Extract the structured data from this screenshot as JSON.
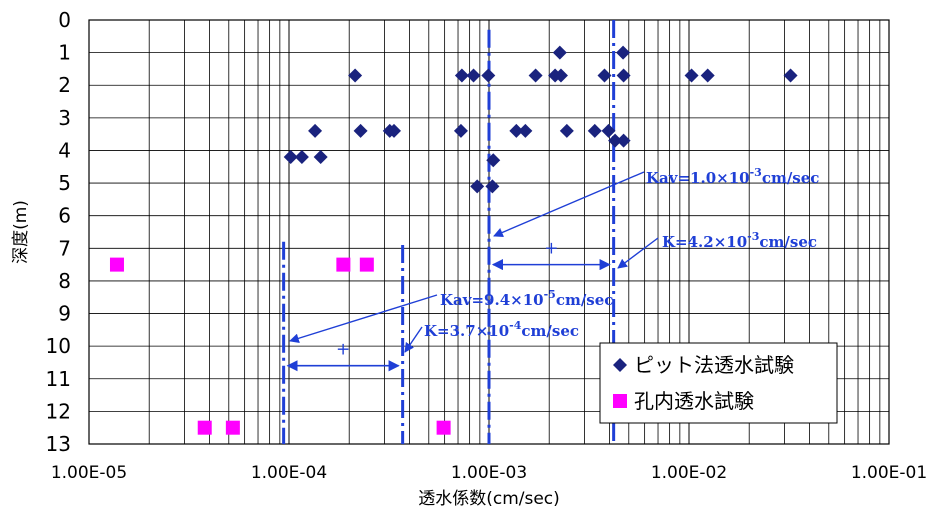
{
  "chart_data": {
    "type": "scatter",
    "xscale": "log",
    "xlim": [
      1e-05,
      0.1
    ],
    "ylim": [
      0,
      13
    ],
    "y_inverted": true,
    "grid": true,
    "xlabel": "透水係数(cm/sec)",
    "ylabel": "深度(m)",
    "x_ticks": [
      "1.00E-05",
      "1.00E-04",
      "1.00E-03",
      "1.00E-02",
      "1.00E-01"
    ],
    "y_ticks": [
      "0",
      "1",
      "2",
      "3",
      "4",
      "5",
      "6",
      "7",
      "8",
      "9",
      "10",
      "11",
      "12",
      "13"
    ],
    "legend_position": "bottom-right",
    "series": [
      {
        "name": "ピット法透水試験",
        "marker": "diamond",
        "color": "#1a237e",
        "points": [
          {
            "x": 0.00226,
            "y": 1.0
          },
          {
            "x": 0.00468,
            "y": 1.0
          },
          {
            "x": 0.000214,
            "y": 1.7
          },
          {
            "x": 0.000732,
            "y": 1.7
          },
          {
            "x": 0.000837,
            "y": 1.7
          },
          {
            "x": 0.000992,
            "y": 1.7
          },
          {
            "x": 0.00171,
            "y": 1.7
          },
          {
            "x": 0.00214,
            "y": 1.7
          },
          {
            "x": 0.00229,
            "y": 1.7
          },
          {
            "x": 0.00378,
            "y": 1.7
          },
          {
            "x": 0.00471,
            "y": 1.7
          },
          {
            "x": 0.0103,
            "y": 1.7
          },
          {
            "x": 0.0124,
            "y": 1.7
          },
          {
            "x": 0.0322,
            "y": 1.7
          },
          {
            "x": 0.000135,
            "y": 3.4
          },
          {
            "x": 0.000228,
            "y": 3.4
          },
          {
            "x": 0.000319,
            "y": 3.4
          },
          {
            "x": 0.000335,
            "y": 3.4
          },
          {
            "x": 0.000724,
            "y": 3.4
          },
          {
            "x": 0.00137,
            "y": 3.4
          },
          {
            "x": 0.00152,
            "y": 3.4
          },
          {
            "x": 0.00245,
            "y": 3.4
          },
          {
            "x": 0.00338,
            "y": 3.4
          },
          {
            "x": 0.00396,
            "y": 3.4
          },
          {
            "x": 0.00427,
            "y": 3.7
          },
          {
            "x": 0.00471,
            "y": 3.7
          },
          {
            "x": 0.000102,
            "y": 4.2
          },
          {
            "x": 0.000116,
            "y": 4.2
          },
          {
            "x": 0.000144,
            "y": 4.2
          },
          {
            "x": 0.00105,
            "y": 4.3
          },
          {
            "x": 0.000873,
            "y": 5.1
          },
          {
            "x": 0.00104,
            "y": 5.1
          }
        ]
      },
      {
        "name": "孔内透水試験",
        "marker": "square",
        "color": "#ff00ff",
        "points": [
          {
            "x": 1.38e-05,
            "y": 7.5
          },
          {
            "x": 0.000187,
            "y": 7.5
          },
          {
            "x": 0.000245,
            "y": 7.5
          },
          {
            "x": 3.79e-05,
            "y": 12.5
          },
          {
            "x": 5.24e-05,
            "y": 12.5
          },
          {
            "x": 0.000593,
            "y": 12.5
          }
        ]
      }
    ],
    "reference_lines": [
      {
        "label": "Kav=9.4×10-5cm/sec",
        "x": 9.4e-05,
        "y_range": [
          6.8,
          13
        ]
      },
      {
        "label": "K=3.7×10-4cm/sec",
        "x": 0.00037,
        "y_range": [
          6.9,
          13
        ]
      },
      {
        "label": "Kav=1.0×10-3cm/sec",
        "x": 0.001,
        "y_range": [
          0.3,
          13
        ]
      },
      {
        "label": "K=4.2×10-3cm/sec",
        "x": 0.0042,
        "y_range": [
          0,
          13
        ]
      }
    ],
    "annotations": [
      {
        "text_parts": [
          "Kav=1.0",
          "×",
          "10",
          "-3",
          "cm/sec"
        ]
      },
      {
        "text_parts": [
          "K=4.2",
          "×",
          "10",
          "-3",
          "cm/sec"
        ]
      },
      {
        "text_parts": [
          "Kav=9.4",
          "×",
          "10",
          "-5",
          "cm/sec"
        ]
      },
      {
        "text_parts": [
          "K=3.7",
          "×",
          "10",
          "-4",
          "cm/sec"
        ]
      }
    ],
    "range_markers": [
      {
        "x_range": [
          9.4e-05,
          0.00037
        ],
        "y": 10.6,
        "symbol": "+"
      },
      {
        "x_range": [
          0.001,
          0.0042
        ],
        "y": 7.5,
        "symbol": "+"
      }
    ]
  }
}
